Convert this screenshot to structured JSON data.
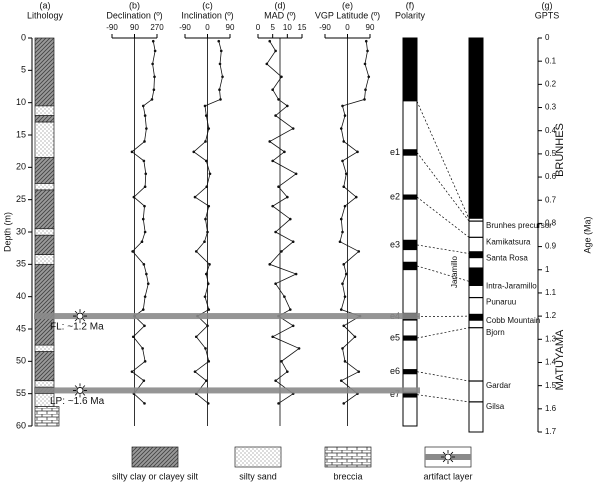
{
  "depth_axis": {
    "label": "Depth (m)",
    "ylim": [
      0,
      60
    ],
    "yticks": [
      0,
      5,
      10,
      15,
      20,
      25,
      30,
      35,
      40,
      45,
      50,
      55,
      60
    ]
  },
  "lithology": {
    "panel": "(a)",
    "title": "Lithology",
    "units": [
      {
        "top": 0,
        "bottom": 10.5,
        "kind": 0
      },
      {
        "top": 10.5,
        "bottom": 12,
        "kind": 1
      },
      {
        "top": 12,
        "bottom": 13,
        "kind": 0
      },
      {
        "top": 13,
        "bottom": 18.5,
        "kind": 1
      },
      {
        "top": 18.5,
        "bottom": 22.5,
        "kind": 0
      },
      {
        "top": 22.5,
        "bottom": 23.5,
        "kind": 1
      },
      {
        "top": 23.5,
        "bottom": 29.5,
        "kind": 0
      },
      {
        "top": 29.5,
        "bottom": 30.5,
        "kind": 1
      },
      {
        "top": 30.5,
        "bottom": 33.5,
        "kind": 0
      },
      {
        "top": 33.5,
        "bottom": 35,
        "kind": 1
      },
      {
        "top": 35,
        "bottom": 47.5,
        "kind": 0
      },
      {
        "top": 47.5,
        "bottom": 48.5,
        "kind": 1
      },
      {
        "top": 48.5,
        "bottom": 53,
        "kind": 0
      },
      {
        "top": 53,
        "bottom": 54,
        "kind": 1
      },
      {
        "top": 54,
        "bottom": 55,
        "kind": 0
      },
      {
        "top": 55,
        "bottom": 57,
        "kind": 1
      },
      {
        "top": 57,
        "bottom": 60,
        "kind": 2
      }
    ]
  },
  "chart_data": [
    {
      "type": "profile",
      "panel": "(b)",
      "title": "Declination (º)",
      "xlim": [
        -90,
        270
      ],
      "xticks": [
        -90,
        90,
        270
      ],
      "depth": [
        0.5,
        2,
        4,
        6,
        8,
        9.5,
        10.5,
        12,
        14,
        16,
        17.6,
        19,
        21,
        23,
        24.6,
        26,
        28,
        30,
        31.5,
        33,
        35,
        36.5,
        38,
        40,
        42,
        43,
        44.5,
        46.2,
        48,
        50,
        51.6,
        53,
        55,
        56.5
      ],
      "values": [
        240,
        255,
        235,
        250,
        245,
        230,
        160,
        175,
        185,
        170,
        70,
        165,
        180,
        175,
        85,
        170,
        160,
        175,
        150,
        75,
        165,
        185,
        200,
        175,
        160,
        90,
        170,
        80,
        155,
        175,
        70,
        165,
        85,
        170
      ]
    },
    {
      "type": "profile",
      "panel": "(c)",
      "title": "Inclination (º)",
      "xlim": [
        -90,
        90
      ],
      "xticks": [
        -90,
        0,
        90
      ],
      "depth": [
        0.5,
        2,
        4,
        6,
        8,
        9.5,
        10.5,
        12,
        14,
        16,
        17.6,
        19,
        21,
        23,
        24.6,
        26,
        28,
        30,
        31.5,
        33,
        35,
        36.5,
        38,
        40,
        42,
        43,
        44.5,
        46.2,
        48,
        50,
        51.6,
        53,
        55,
        56.5
      ],
      "values": [
        45,
        55,
        50,
        60,
        48,
        52,
        -10,
        -5,
        5,
        -8,
        -55,
        -5,
        10,
        -3,
        -50,
        5,
        -8,
        0,
        -12,
        -45,
        8,
        -5,
        3,
        -10,
        5,
        -40,
        0,
        -45,
        -8,
        5,
        -50,
        -5,
        -45,
        3
      ]
    },
    {
      "type": "profile",
      "panel": "(d)",
      "title": "MAD (º)",
      "xlim": [
        0,
        15
      ],
      "xticks": [
        0,
        5,
        10,
        15
      ],
      "depth": [
        0.5,
        2,
        4,
        6,
        8,
        9.5,
        10.5,
        12,
        14,
        16,
        17.6,
        19,
        21,
        23,
        24.6,
        26,
        28,
        30,
        31.5,
        33,
        35,
        36.5,
        38,
        40,
        42,
        43,
        44.5,
        46.2,
        48,
        50,
        51.6,
        53,
        55,
        56.5
      ],
      "values": [
        4,
        6,
        3,
        8,
        5,
        7,
        10,
        6,
        12,
        4,
        9,
        5,
        13,
        7,
        10,
        5,
        11,
        6,
        12,
        8,
        4,
        13,
        6,
        9,
        11,
        7,
        12,
        5,
        14,
        8,
        10,
        6,
        12,
        7
      ]
    },
    {
      "type": "profile",
      "panel": "(e)",
      "title": "VGP Latitude (º)",
      "xlim": [
        -90,
        90
      ],
      "xticks": [
        -90,
        0,
        90
      ],
      "depth": [
        0.5,
        2,
        4,
        6,
        8,
        9.5,
        10.5,
        12,
        14,
        16,
        17.6,
        19,
        21,
        23,
        24.6,
        26,
        28,
        30,
        31.5,
        33,
        35,
        36.5,
        38,
        40,
        42,
        43,
        44.5,
        46.2,
        48,
        50,
        51.6,
        53,
        55,
        56.5
      ],
      "values": [
        75,
        80,
        70,
        85,
        72,
        68,
        -20,
        -10,
        -25,
        -15,
        40,
        -20,
        -5,
        -15,
        35,
        -10,
        -25,
        -20,
        -30,
        45,
        -15,
        -5,
        -20,
        -10,
        -25,
        50,
        -15,
        30,
        -20,
        -10,
        45,
        -25,
        40,
        -15
      ]
    }
  ],
  "polarity": {
    "panel": "(f)",
    "title": "Polarity",
    "normal": [
      [
        0,
        9.8
      ],
      [
        17.2,
        18.2
      ],
      [
        24.2,
        25.0
      ],
      [
        31.2,
        32.8
      ],
      [
        34.6,
        35.9
      ],
      [
        42.5,
        43.7
      ],
      [
        46.0,
        46.8
      ],
      [
        51.2,
        52.0
      ],
      [
        54.7,
        55.6
      ]
    ],
    "labels": [
      "e1",
      "e2",
      "e3",
      "e4",
      "e5",
      "e6",
      "e7"
    ]
  },
  "gpts": {
    "panel": "(g)",
    "title": "GPTS",
    "ylabel": "Age (Ma)",
    "ylim": [
      0,
      1.7
    ],
    "yticks": [
      0,
      0.1,
      0.2,
      0.3,
      0.4,
      0.5,
      0.6,
      0.7,
      0.8,
      0.9,
      1,
      1.1,
      1.2,
      1.3,
      1.4,
      1.5,
      1.6,
      1.7
    ],
    "normal": [
      [
        0,
        0.78
      ],
      [
        0.92,
        0.95
      ],
      [
        0.99,
        1.07
      ],
      [
        1.19,
        1.22
      ]
    ],
    "events": [
      {
        "name": "Brunhes precursor",
        "age": 0.79
      },
      {
        "name": "Kamikatsura",
        "age": 0.86
      },
      {
        "name": "Santa Rosa",
        "age": 0.93
      },
      {
        "name": "Intra-Jaramillo",
        "age": 1.05
      },
      {
        "name": "Punaruu",
        "age": 1.12
      },
      {
        "name": "Cobb Mountain",
        "age": 1.2
      },
      {
        "name": "Bjorn",
        "age": 1.25
      },
      {
        "name": "Gardar",
        "age": 1.48
      },
      {
        "name": "Gilsa",
        "age": 1.57
      }
    ],
    "chrons": [
      "BRUNHES",
      "MATUYAMA"
    ],
    "subchron": "Jaramillo"
  },
  "artifact_layers": [
    {
      "depth": 43,
      "label": "FL: ~1.2 Ma"
    },
    {
      "depth": 54.5,
      "label": "LP: ~1.6 Ma"
    }
  ],
  "legend": [
    "silty clay or clayey silt",
    "silty sand",
    "breccia",
    "artifact layer"
  ]
}
